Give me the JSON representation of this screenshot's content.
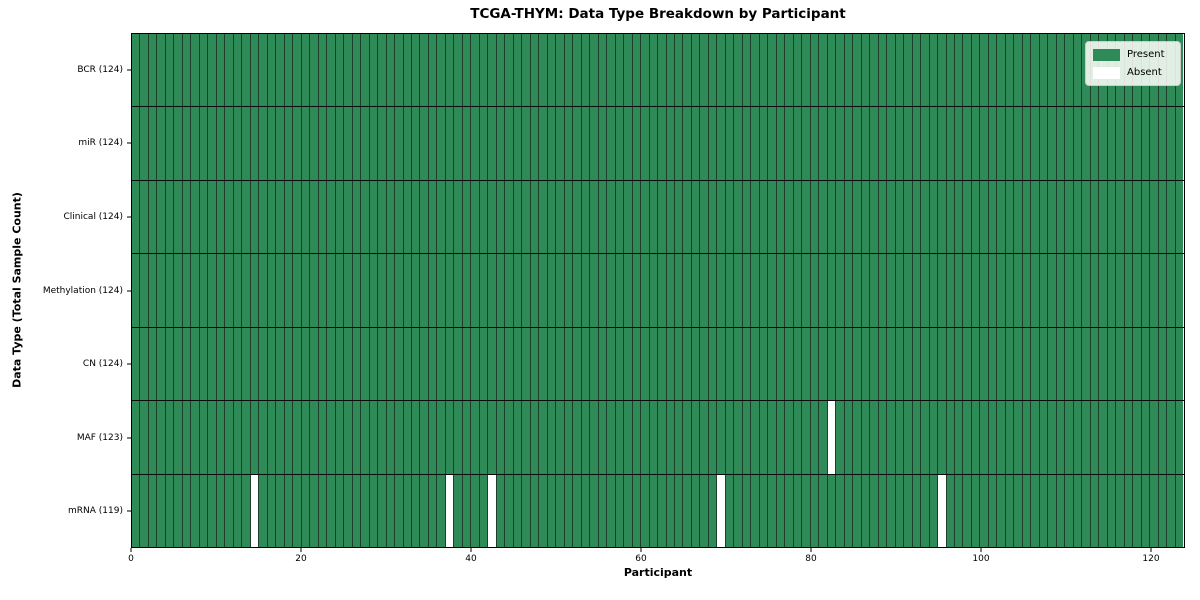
{
  "title": "TCGA-THYM: Data Type Breakdown by Participant",
  "axes": {
    "xlabel": "Participant",
    "ylabel": "Data Type (Total Sample Count)",
    "x_tick_labels": [
      "0",
      "20",
      "40",
      "60",
      "80",
      "100",
      "120"
    ],
    "x_tick_values": [
      0,
      20,
      40,
      60,
      80,
      100,
      120
    ],
    "x_range": [
      0,
      124
    ]
  },
  "legend": {
    "items": [
      {
        "label": "Present",
        "color": "#2e8b57"
      },
      {
        "label": "Absent",
        "color": "#ffffff"
      }
    ],
    "position": "upper right"
  },
  "colors": {
    "present": "#2e8b57",
    "absent": "#ffffff",
    "cell_border": "#1d3e2b",
    "row_border": "#0a0a0a"
  },
  "chart_data": {
    "type": "heatmap",
    "title": "TCGA-THYM: Data Type Breakdown by Participant",
    "xlabel": "Participant",
    "ylabel": "Data Type (Total Sample Count)",
    "n_participants": 124,
    "x_ticks": [
      0,
      20,
      40,
      60,
      80,
      100,
      120
    ],
    "grid": "cell-borders",
    "legend_entries": [
      "Present",
      "Absent"
    ],
    "legend_position": "upper right",
    "categories_y": [
      "BCR (124)",
      "miR (124)",
      "Clinical (124)",
      "Methylation (124)",
      "CN (124)",
      "MAF (123)",
      "mRNA (119)"
    ],
    "rows": [
      {
        "label": "BCR (124)",
        "data_type": "bcr",
        "present_count": 124,
        "absent_participants": []
      },
      {
        "label": "miR (124)",
        "data_type": "mir",
        "present_count": 124,
        "absent_participants": []
      },
      {
        "label": "Clinical (124)",
        "data_type": "clinical",
        "present_count": 124,
        "absent_participants": []
      },
      {
        "label": "Methylation (124)",
        "data_type": "methylation",
        "present_count": 124,
        "absent_participants": []
      },
      {
        "label": "CN (124)",
        "data_type": "cn",
        "present_count": 124,
        "absent_participants": []
      },
      {
        "label": "MAF (123)",
        "data_type": "maf",
        "present_count": 123,
        "absent_participants": [
          82
        ]
      },
      {
        "label": "mRNA (119)",
        "data_type": "mrna",
        "present_count": 119,
        "absent_participants": [
          14,
          37,
          42,
          69,
          95
        ]
      }
    ]
  }
}
